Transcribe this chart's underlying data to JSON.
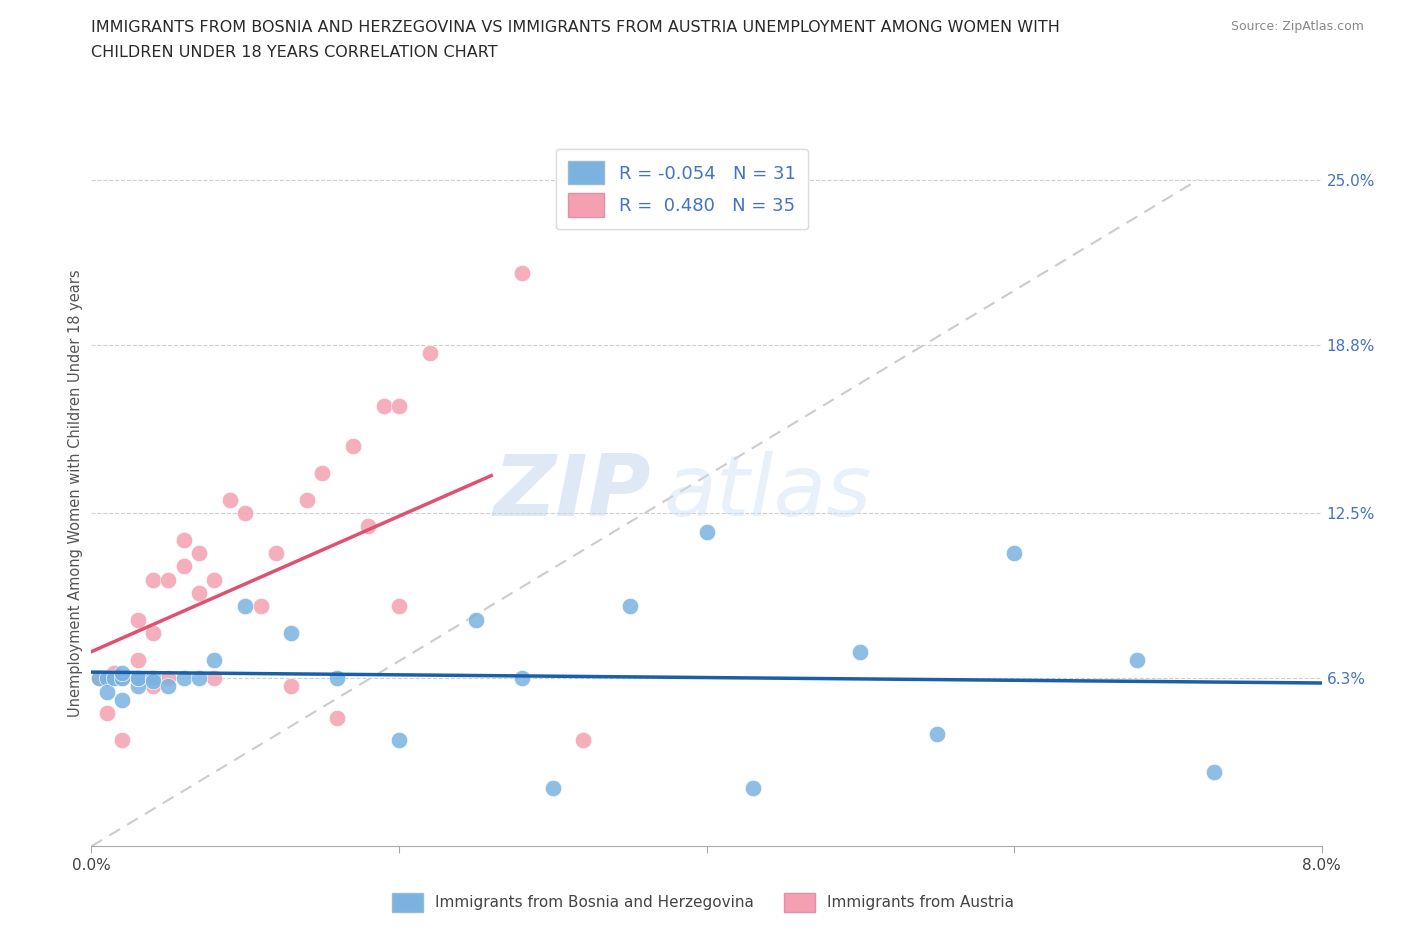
{
  "title_line1": "IMMIGRANTS FROM BOSNIA AND HERZEGOVINA VS IMMIGRANTS FROM AUSTRIA UNEMPLOYMENT AMONG WOMEN WITH",
  "title_line2": "CHILDREN UNDER 18 YEARS CORRELATION CHART",
  "source": "Source: ZipAtlas.com",
  "ylabel": "Unemployment Among Women with Children Under 18 years",
  "legend1_label": "Immigrants from Bosnia and Herzegovina",
  "legend2_label": "Immigrants from Austria",
  "R_bosnia": -0.054,
  "N_bosnia": 31,
  "R_austria": 0.48,
  "N_austria": 35,
  "color_bosnia": "#7ab3e0",
  "color_austria": "#f4a0b0",
  "line_color_bosnia": "#1a5fa8",
  "line_color_austria": "#e05070",
  "xlim": [
    0.0,
    0.08
  ],
  "ylim": [
    0.0,
    0.265
  ],
  "ytick_values": [
    0.063,
    0.125,
    0.188,
    0.25
  ],
  "ytick_labels": [
    "6.3%",
    "12.5%",
    "18.8%",
    "25.0%"
  ],
  "background_color": "#ffffff",
  "bosnia_x": [
    0.0005,
    0.001,
    0.001,
    0.0015,
    0.002,
    0.002,
    0.002,
    0.003,
    0.003,
    0.003,
    0.004,
    0.004,
    0.005,
    0.006,
    0.007,
    0.008,
    0.01,
    0.013,
    0.016,
    0.02,
    0.025,
    0.028,
    0.03,
    0.035,
    0.04,
    0.043,
    0.05,
    0.055,
    0.06,
    0.068,
    0.073
  ],
  "bosnia_y": [
    0.063,
    0.063,
    0.058,
    0.063,
    0.063,
    0.055,
    0.065,
    0.06,
    0.063,
    0.063,
    0.063,
    0.062,
    0.06,
    0.063,
    0.063,
    0.07,
    0.09,
    0.08,
    0.063,
    0.04,
    0.085,
    0.063,
    0.022,
    0.09,
    0.118,
    0.022,
    0.073,
    0.042,
    0.11,
    0.07,
    0.028
  ],
  "austria_x": [
    0.0005,
    0.001,
    0.001,
    0.0015,
    0.002,
    0.002,
    0.003,
    0.003,
    0.004,
    0.004,
    0.004,
    0.005,
    0.005,
    0.006,
    0.006,
    0.007,
    0.007,
    0.008,
    0.008,
    0.009,
    0.01,
    0.011,
    0.012,
    0.013,
    0.014,
    0.015,
    0.016,
    0.017,
    0.018,
    0.019,
    0.02,
    0.02,
    0.022,
    0.028,
    0.032
  ],
  "austria_y": [
    0.063,
    0.063,
    0.05,
    0.065,
    0.063,
    0.04,
    0.07,
    0.085,
    0.08,
    0.06,
    0.1,
    0.063,
    0.1,
    0.105,
    0.115,
    0.095,
    0.11,
    0.1,
    0.063,
    0.13,
    0.125,
    0.09,
    0.11,
    0.06,
    0.13,
    0.14,
    0.048,
    0.15,
    0.12,
    0.165,
    0.165,
    0.09,
    0.185,
    0.215,
    0.04
  ],
  "ref_line_x": [
    0.0,
    0.072
  ],
  "ref_line_y": [
    0.0,
    0.25
  ]
}
